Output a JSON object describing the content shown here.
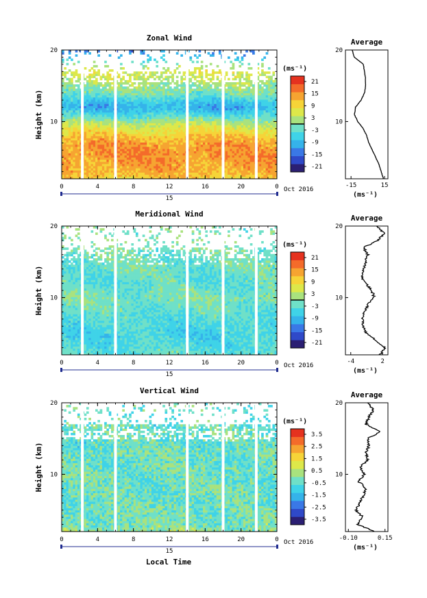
{
  "figure": {
    "xlabel": "Local Time",
    "date_label": "Oct 2016",
    "day_label": "15",
    "ylabel": "Height (km)",
    "average_title": "Average",
    "unit_label": "(ms⁻¹)"
  },
  "colors": {
    "palette": [
      "#2b1f73",
      "#2f49c8",
      "#3a78e6",
      "#35b3ea",
      "#3fd3e8",
      "#6fe0c8",
      "#a9e27e",
      "#dde84a",
      "#f6d438",
      "#f6a431",
      "#f46b2a",
      "#e5321f"
    ],
    "missing": "#ffffff",
    "line": "#000000",
    "axis_band": "#1f2b8f"
  },
  "chart_data": [
    {
      "type": "heatmap",
      "panel": "zonal",
      "title": "Zonal Wind",
      "xlabel": "Local Time",
      "ylabel": "Height (km)",
      "x_ticks": [
        "0",
        "4",
        "8",
        "12",
        "16",
        "20",
        "0"
      ],
      "y_ticks": [
        "20",
        "10"
      ],
      "xlim": [
        0,
        24
      ],
      "ylim": [
        2,
        20
      ],
      "colorbar": {
        "unit": "(ms⁻¹)",
        "ticks": [
          "21",
          "15",
          "9",
          "3",
          "-3",
          "-9",
          "-15",
          "-21"
        ],
        "range": [
          -24,
          24
        ]
      },
      "gaps_hours": [
        2.3,
        6.0,
        14.0,
        18.0,
        21.7
      ],
      "profile_levels_km": [
        2,
        3,
        4,
        5,
        6,
        7,
        8,
        9,
        10,
        11,
        12,
        13,
        14,
        15,
        16,
        17,
        18,
        19,
        20
      ],
      "profile_values": [
        10,
        13,
        14,
        15,
        15,
        14,
        11,
        7,
        2,
        -5,
        -10,
        -6,
        -1,
        1,
        4,
        6,
        1,
        -8,
        -14
      ],
      "average": {
        "title": "Average",
        "x_ticks": [
          "-15",
          "15"
        ],
        "xlim": [
          -20,
          18
        ],
        "xlabel": "(ms⁻¹)",
        "y_ticks": [
          "20",
          "10"
        ],
        "height_km": [
          2,
          3,
          4,
          5,
          6,
          7,
          8,
          9,
          10,
          11,
          12,
          13,
          14,
          15,
          16,
          17,
          18,
          19,
          20
        ],
        "values": [
          14,
          12,
          10,
          7,
          4,
          1,
          -1,
          -4,
          -9,
          -12,
          -11,
          -6,
          -3,
          -2,
          -2,
          -3,
          -4,
          -12,
          -14
        ]
      }
    },
    {
      "type": "heatmap",
      "panel": "meridional",
      "title": "Meridional Wind",
      "xlabel": "Local Time",
      "ylabel": "Height (km)",
      "x_ticks": [
        "0",
        "4",
        "8",
        "12",
        "16",
        "20",
        "0"
      ],
      "y_ticks": [
        "20",
        "10"
      ],
      "xlim": [
        0,
        24
      ],
      "ylim": [
        2,
        20
      ],
      "colorbar": {
        "unit": "(ms⁻¹)",
        "ticks": [
          "21",
          "15",
          "9",
          "3",
          "-3",
          "-9",
          "-15",
          "-21"
        ],
        "range": [
          -24,
          24
        ]
      },
      "gaps_hours": [
        2.3,
        6.0,
        14.0,
        18.0,
        21.7
      ],
      "profile_levels_km": [
        2,
        3,
        4,
        5,
        6,
        7,
        8,
        9,
        10,
        11,
        12,
        13,
        14,
        15,
        16,
        17,
        18,
        19,
        20
      ],
      "profile_values": [
        -3,
        -4,
        -5,
        -6,
        -5,
        -4,
        -3,
        -2,
        -1,
        -2,
        -3,
        -3,
        -2,
        -2,
        -2,
        -1,
        0,
        0,
        -1
      ],
      "average": {
        "title": "Average",
        "x_ticks": [
          "-4",
          "2"
        ],
        "xlim": [
          -5,
          3
        ],
        "xlabel": "(ms⁻¹)",
        "y_ticks": [
          "20",
          "10"
        ],
        "height_km": [
          2,
          3,
          4,
          5,
          6,
          7,
          8,
          9,
          10,
          11,
          12,
          13,
          14,
          15,
          16,
          17,
          18,
          19,
          20
        ],
        "values": [
          1.5,
          2.4,
          0.8,
          -1.0,
          -1.6,
          -1.8,
          -1.4,
          -0.8,
          0.4,
          0.0,
          -1.2,
          -2.0,
          -1.6,
          -1.2,
          -0.8,
          -1.6,
          1.2,
          2.2,
          1.0
        ]
      }
    },
    {
      "type": "heatmap",
      "panel": "vertical",
      "title": "Vertical Wind",
      "xlabel": "Local Time",
      "ylabel": "Height (km)",
      "x_ticks": [
        "0",
        "4",
        "8",
        "12",
        "16",
        "20",
        "0"
      ],
      "y_ticks": [
        "20",
        "10"
      ],
      "xlim": [
        0,
        24
      ],
      "ylim": [
        2,
        20
      ],
      "colorbar": {
        "unit": "(ms⁻¹)",
        "ticks": [
          "3.5",
          "2.5",
          "1.5",
          "0.5",
          "-0.5",
          "-1.5",
          "-2.5",
          "-3.5"
        ],
        "range": [
          -4,
          4
        ]
      },
      "gaps_hours": [
        2.3,
        6.0,
        14.0,
        18.0,
        21.7
      ],
      "profile_levels_km": [
        2,
        3,
        4,
        5,
        6,
        7,
        8,
        9,
        10,
        11,
        12,
        13,
        14,
        15,
        16,
        17,
        18,
        19,
        20
      ],
      "profile_values": [
        0.1,
        -0.2,
        -0.3,
        -0.3,
        -0.4,
        -0.3,
        -0.3,
        -0.4,
        -0.3,
        -0.3,
        -0.4,
        -0.3,
        -0.5,
        -0.4,
        -0.3,
        -0.5,
        -0.5,
        -0.4,
        -0.4
      ],
      "average": {
        "title": "Average",
        "x_ticks": [
          "-0.10",
          "0.15"
        ],
        "xlim": [
          -0.12,
          0.17
        ],
        "xlabel": "(ms⁻¹)",
        "y_ticks": [
          "20",
          "10"
        ],
        "height_km": [
          2,
          3,
          4,
          5,
          6,
          7,
          8,
          9,
          10,
          11,
          12,
          13,
          14,
          15,
          16,
          17,
          18,
          19,
          20
        ],
        "values": [
          0.08,
          -0.04,
          0.0,
          -0.05,
          -0.02,
          0.0,
          0.02,
          -0.03,
          0.01,
          -0.02,
          0.03,
          0.02,
          0.04,
          0.03,
          0.12,
          0.02,
          0.04,
          0.07,
          0.03
        ]
      }
    }
  ]
}
